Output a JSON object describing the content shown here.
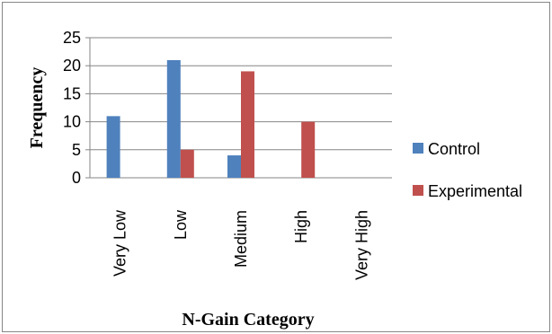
{
  "chart_data": {
    "type": "bar",
    "categories": [
      "Very Low",
      "Low",
      "Medium",
      "High",
      "Very High"
    ],
    "series": [
      {
        "name": "Control",
        "values": [
          11,
          21,
          4,
          0,
          0
        ],
        "color": "#4f81bd"
      },
      {
        "name": "Experimental",
        "values": [
          0,
          5,
          19,
          10,
          0
        ],
        "color": "#c0504d"
      }
    ],
    "xlabel": "N-Gain Category",
    "ylabel": "Frequency",
    "ylim": [
      0,
      25
    ],
    "yticks": [
      "0",
      "5",
      "10",
      "15",
      "20",
      "25"
    ],
    "grid": true,
    "legend_position": "right",
    "grid_color": "#868686"
  }
}
